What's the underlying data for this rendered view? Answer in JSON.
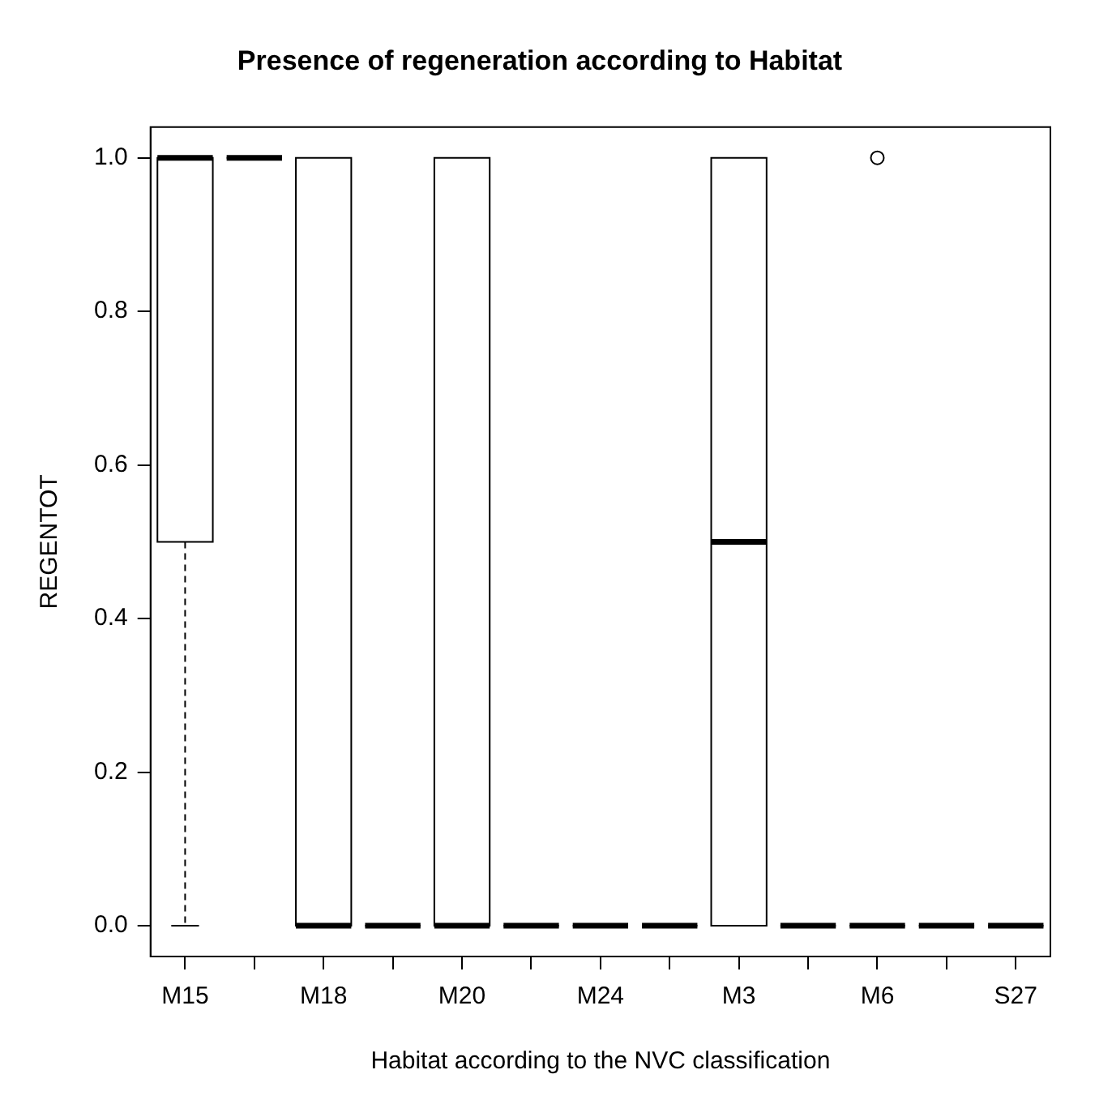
{
  "chart_data": {
    "type": "box",
    "title": "Presence of regeneration according to Habitat",
    "xlabel": "Habitat according to the NVC classification",
    "ylabel": "REGENTOT",
    "categories": [
      "M15",
      null,
      "M18",
      null,
      "M20",
      null,
      "M24",
      null,
      "M3",
      null,
      "M6",
      null,
      "S27"
    ],
    "ylim": [
      -0.04,
      1.04
    ],
    "yticks": [
      {
        "value": 0,
        "label": "0.0"
      },
      {
        "value": 0.2,
        "label": "0.2"
      },
      {
        "value": 0.4,
        "label": "0.4"
      },
      {
        "value": 0.6,
        "label": "0.6"
      },
      {
        "value": 0.8,
        "label": "0.8"
      },
      {
        "value": 1,
        "label": "1.0"
      }
    ],
    "grid": false,
    "legend": false,
    "boxes": [
      {
        "low": 0,
        "q1": 0.5,
        "median": 1,
        "q3": 1,
        "high": 1
      },
      {
        "low": 1,
        "q1": 1,
        "median": 1,
        "q3": 1,
        "high": 1
      },
      {
        "low": 0,
        "q1": 0,
        "median": 0,
        "q3": 1,
        "high": 1
      },
      {
        "low": 0,
        "q1": 0,
        "median": 0,
        "q3": 0,
        "high": 0
      },
      {
        "low": 0,
        "q1": 0,
        "median": 0,
        "q3": 1,
        "high": 1
      },
      {
        "low": 0,
        "q1": 0,
        "median": 0,
        "q3": 0,
        "high": 0
      },
      {
        "low": 0,
        "q1": 0,
        "median": 0,
        "q3": 0,
        "high": 0
      },
      {
        "low": 0,
        "q1": 0,
        "median": 0,
        "q3": 0,
        "high": 0
      },
      {
        "low": 0,
        "q1": 0,
        "median": 0.5,
        "q3": 1,
        "high": 1
      },
      {
        "low": 0,
        "q1": 0,
        "median": 0,
        "q3": 0,
        "high": 0
      },
      {
        "low": 0,
        "q1": 0,
        "median": 0,
        "q3": 0,
        "high": 0,
        "outliers": [
          1
        ]
      },
      {
        "low": 0,
        "q1": 0,
        "median": 0,
        "q3": 0,
        "high": 0
      },
      {
        "low": 0,
        "q1": 0,
        "median": 0,
        "q3": 0,
        "high": 0
      }
    ]
  }
}
